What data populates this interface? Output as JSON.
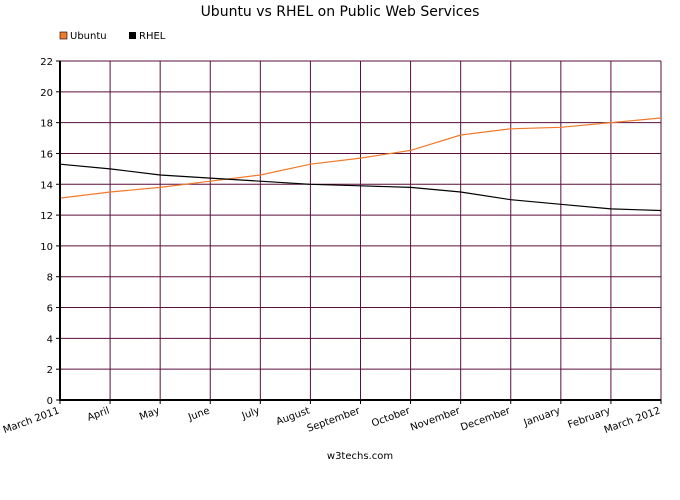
{
  "chart_data": {
    "type": "line",
    "title": "Ubuntu vs RHEL on Public Web Services",
    "xlabel": "",
    "ylabel": "",
    "categories": [
      "March 2011",
      "April",
      "May",
      "June",
      "July",
      "August",
      "September",
      "October",
      "November",
      "December",
      "January",
      "February",
      "March 2012"
    ],
    "ylim": [
      0,
      22
    ],
    "yticks": [
      0,
      2,
      4,
      6,
      8,
      10,
      12,
      14,
      16,
      18,
      20,
      22
    ],
    "grid": true,
    "legend_position": "top-left",
    "series": [
      {
        "name": "Ubuntu",
        "color": "#f07a2b",
        "values": [
          13.1,
          13.5,
          13.8,
          14.2,
          14.6,
          15.3,
          15.7,
          16.2,
          17.2,
          17.6,
          17.7,
          18.0,
          18.3
        ]
      },
      {
        "name": "RHEL",
        "color": "#000000",
        "values": [
          15.3,
          15.0,
          14.6,
          14.4,
          14.2,
          14.0,
          13.9,
          13.8,
          13.5,
          13.0,
          12.7,
          12.4,
          12.3
        ]
      }
    ],
    "source_label": "w3techs.com"
  }
}
